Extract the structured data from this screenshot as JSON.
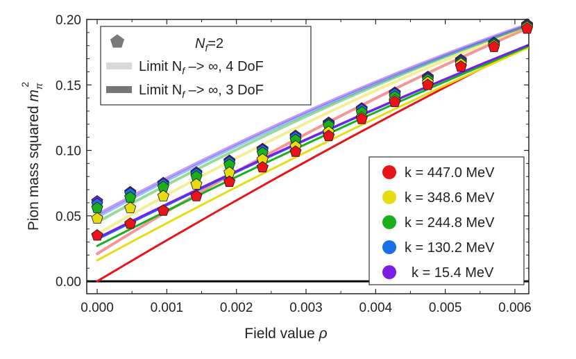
{
  "chart_data": {
    "type": "scatter",
    "xlabel_prefix": "Field value ",
    "xlabel_symbol": "ρ",
    "ylabel_prefix": "Pion mass squared ",
    "ylabel_symbol": "m",
    "ylabel_sub": "π",
    "ylabel_sup": "2",
    "xlim": [
      -0.00015,
      0.0062
    ],
    "ylim": [
      -0.0095,
      0.2
    ],
    "xticks": [
      "0.000",
      "0.001",
      "0.002",
      "0.003",
      "0.004",
      "0.005",
      "0.006"
    ],
    "xtick_values": [
      0,
      0.001,
      0.002,
      0.003,
      0.004,
      0.005,
      0.006
    ],
    "yticks": [
      "0.00",
      "0.05",
      "0.10",
      "0.15",
      "0.20"
    ],
    "ytick_values": [
      0,
      0.05,
      0.1,
      0.15,
      0.2
    ],
    "x": [
      0,
      0.000475,
      0.00095,
      0.001425,
      0.0019,
      0.002375,
      0.00285,
      0.003325,
      0.0038,
      0.004275,
      0.00475,
      0.005225,
      0.0057,
      0.006175
    ],
    "legend_top": {
      "title_prefix": "N",
      "title_sub": "f",
      "title_suffix": "=2",
      "entry_light_prefix": "Limit N",
      "entry_light_sub": "f",
      "entry_light_suffix": " –> ∞, 4 DoF",
      "entry_dark_prefix": "Limit N",
      "entry_dark_sub": "f",
      "entry_dark_suffix": " –> ∞, 3 DoF"
    },
    "series": [
      {
        "name": "k = 447.0 MeV",
        "color": "#e8141a",
        "points": [
          0.035,
          0.044,
          0.054,
          0.065,
          0.076,
          0.087,
          0.099,
          0.111,
          0.124,
          0.137,
          0.15,
          0.164,
          0.179,
          0.193
        ],
        "line_4dof": [
          0.021,
          0.193
        ],
        "line_3dof": [
          0.0,
          0.18
        ]
      },
      {
        "name": "k = 348.6 MeV",
        "color": "#e6dc14",
        "points": [
          0.048,
          0.056,
          0.065,
          0.074,
          0.083,
          0.093,
          0.103,
          0.114,
          0.125,
          0.138,
          0.152,
          0.166,
          0.18,
          0.194
        ],
        "line_4dof": [
          0.036,
          0.194
        ],
        "line_3dof": [
          0.016,
          0.178
        ]
      },
      {
        "name": "k = 244.8 MeV",
        "color": "#19b01c",
        "points": [
          0.056,
          0.064,
          0.072,
          0.08,
          0.089,
          0.098,
          0.108,
          0.119,
          0.129,
          0.141,
          0.154,
          0.167,
          0.181,
          0.195
        ],
        "line_4dof": [
          0.045,
          0.195
        ],
        "line_3dof": [
          0.027,
          0.179
        ]
      },
      {
        "name": "k = 130.2 MeV",
        "color": "#1a6ee8",
        "points": [
          0.059,
          0.067,
          0.074,
          0.082,
          0.091,
          0.1,
          0.11,
          0.12,
          0.131,
          0.143,
          0.155,
          0.168,
          0.182,
          0.195
        ],
        "line_4dof": [
          0.049,
          0.195
        ],
        "line_3dof": [
          0.032,
          0.18
        ]
      },
      {
        "name": "k = 15.4 MeV",
        "color": "#7a1ee6",
        "points": [
          0.061,
          0.068,
          0.075,
          0.083,
          0.092,
          0.101,
          0.111,
          0.121,
          0.132,
          0.144,
          0.156,
          0.169,
          0.182,
          0.196
        ],
        "line_4dof": [
          0.051,
          0.196
        ],
        "line_3dof": [
          0.033,
          0.18
        ]
      }
    ]
  }
}
